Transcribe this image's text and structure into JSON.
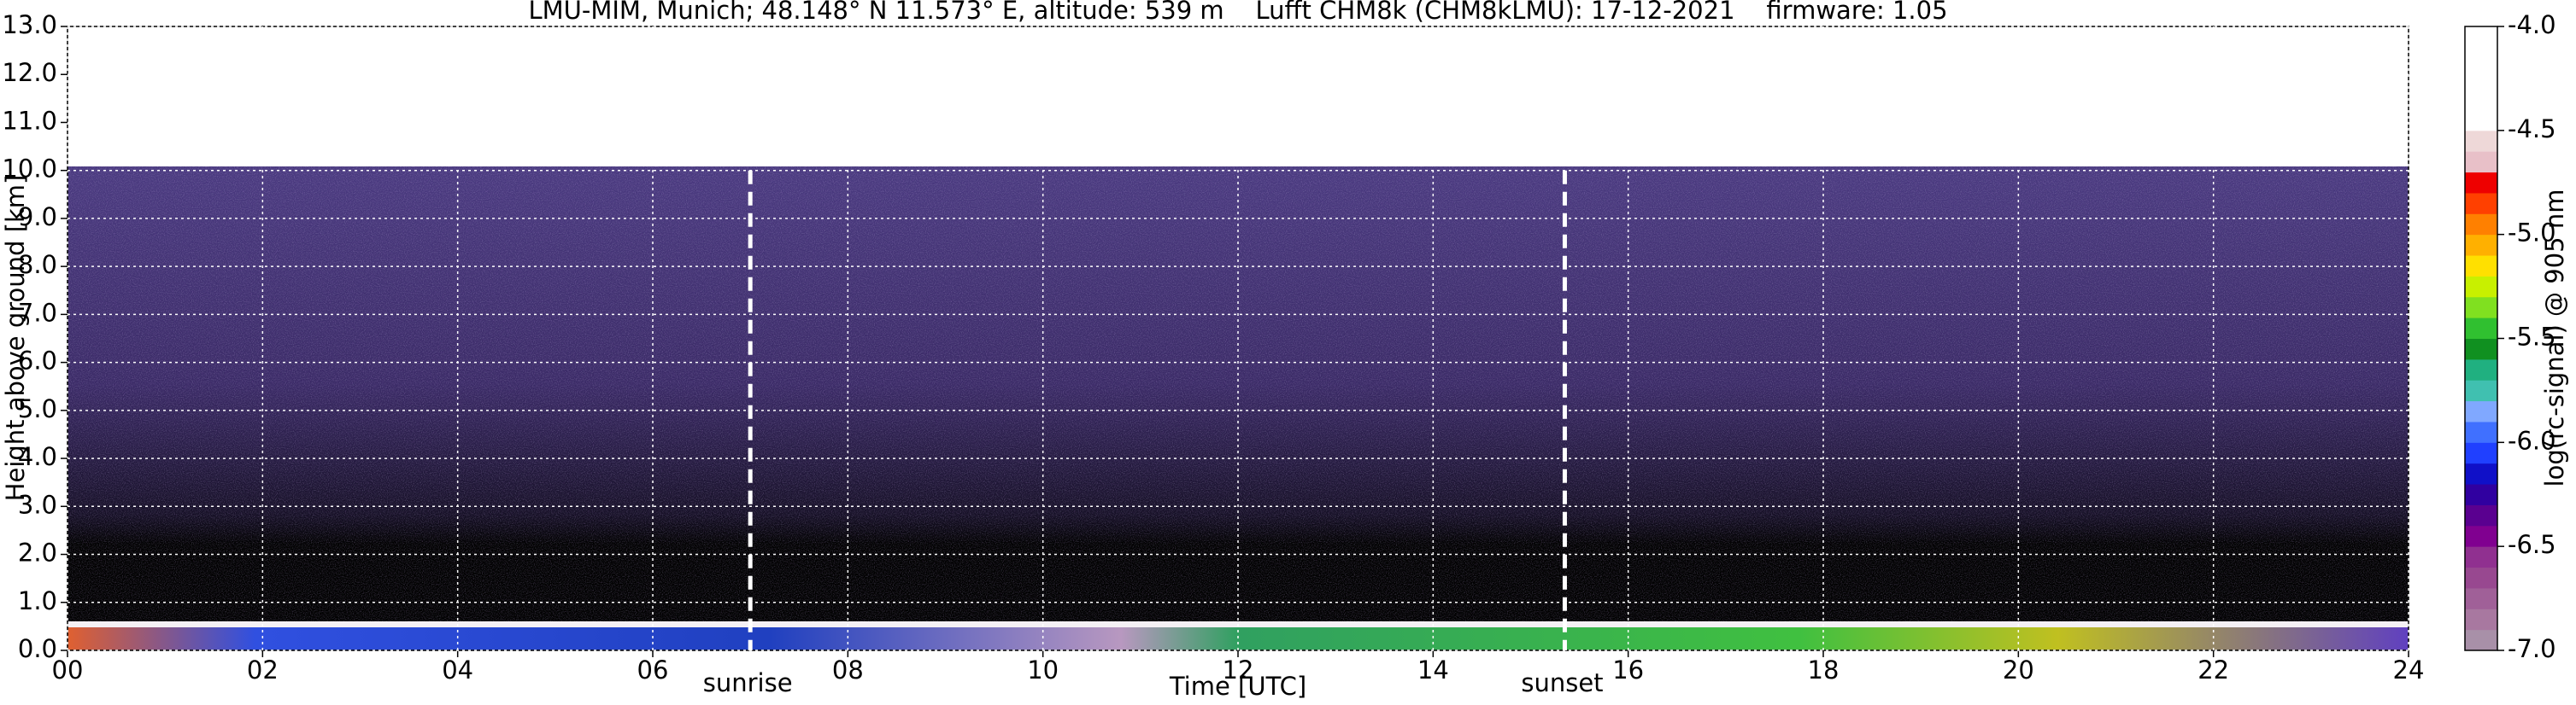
{
  "chart_data": {
    "type": "heatmap",
    "title": "LMU-MIM, Munich; 48.148° N 11.573° E, altitude: 539 m    Lufft CHM8k (CHM8kLMU): 17-12-2021    firmware: 1.05",
    "xlabel": "Time [UTC]",
    "ylabel": "Height above ground [km]",
    "xlim": [
      0,
      24
    ],
    "xticks": [
      {
        "value": 0,
        "label": "00"
      },
      {
        "value": 2,
        "label": "02"
      },
      {
        "value": 4,
        "label": "04"
      },
      {
        "value": 6,
        "label": "06"
      },
      {
        "value": 8,
        "label": "08"
      },
      10,
      12,
      14,
      16,
      18,
      20,
      22,
      24
    ],
    "ylim": [
      0,
      13
    ],
    "yticks": [
      {
        "value": 0,
        "label": "0.0"
      },
      {
        "value": 1,
        "label": "1.0"
      },
      {
        "value": 2,
        "label": "2.0"
      },
      {
        "value": 3,
        "label": "3.0"
      },
      {
        "value": 4,
        "label": "4.0"
      },
      {
        "value": 5,
        "label": "5.0"
      },
      {
        "value": 6,
        "label": "6.0"
      },
      {
        "value": 7,
        "label": "7.0"
      },
      {
        "value": 8,
        "label": "8.0"
      },
      {
        "value": 9,
        "label": "9.0"
      },
      {
        "value": 10,
        "label": "10.0"
      },
      {
        "value": 11,
        "label": "11.0"
      },
      {
        "value": 12,
        "label": "12.0"
      },
      {
        "value": 13,
        "label": "13.0"
      }
    ],
    "grid": true,
    "annotations": [
      {
        "text": "sunrise",
        "x": 7.0
      },
      {
        "text": "sunset",
        "x": 15.35
      }
    ],
    "colorbar": {
      "label": "log(rc-signal) @ 905 nm",
      "lim": [
        -7,
        -4
      ],
      "ticks": [
        {
          "value": -4,
          "label": "-4.0"
        },
        -4.5,
        {
          "value": -5,
          "label": "-5.0"
        },
        -5.5,
        {
          "value": -6,
          "label": "-6.0"
        },
        -6.5,
        {
          "value": -7,
          "label": "-7.0"
        }
      ],
      "colors": [
        "#a890a8",
        "#a878a0",
        "#a06098",
        "#984890",
        "#903090",
        "#800090",
        "#5a0090",
        "#3000a0",
        "#1010c8",
        "#2040ff",
        "#4070ff",
        "#80a8ff",
        "#40c0b0",
        "#20b080",
        "#109020",
        "#30c030",
        "#80e020",
        "#c8f000",
        "#ffe000",
        "#ffb000",
        "#ff8000",
        "#ff4000",
        "#ee0000",
        "#e8c0c8",
        "#eed8d8",
        "#ffffff",
        "#ffffff",
        "#ffffff",
        "#ffffff",
        "#ffffff"
      ]
    }
  }
}
